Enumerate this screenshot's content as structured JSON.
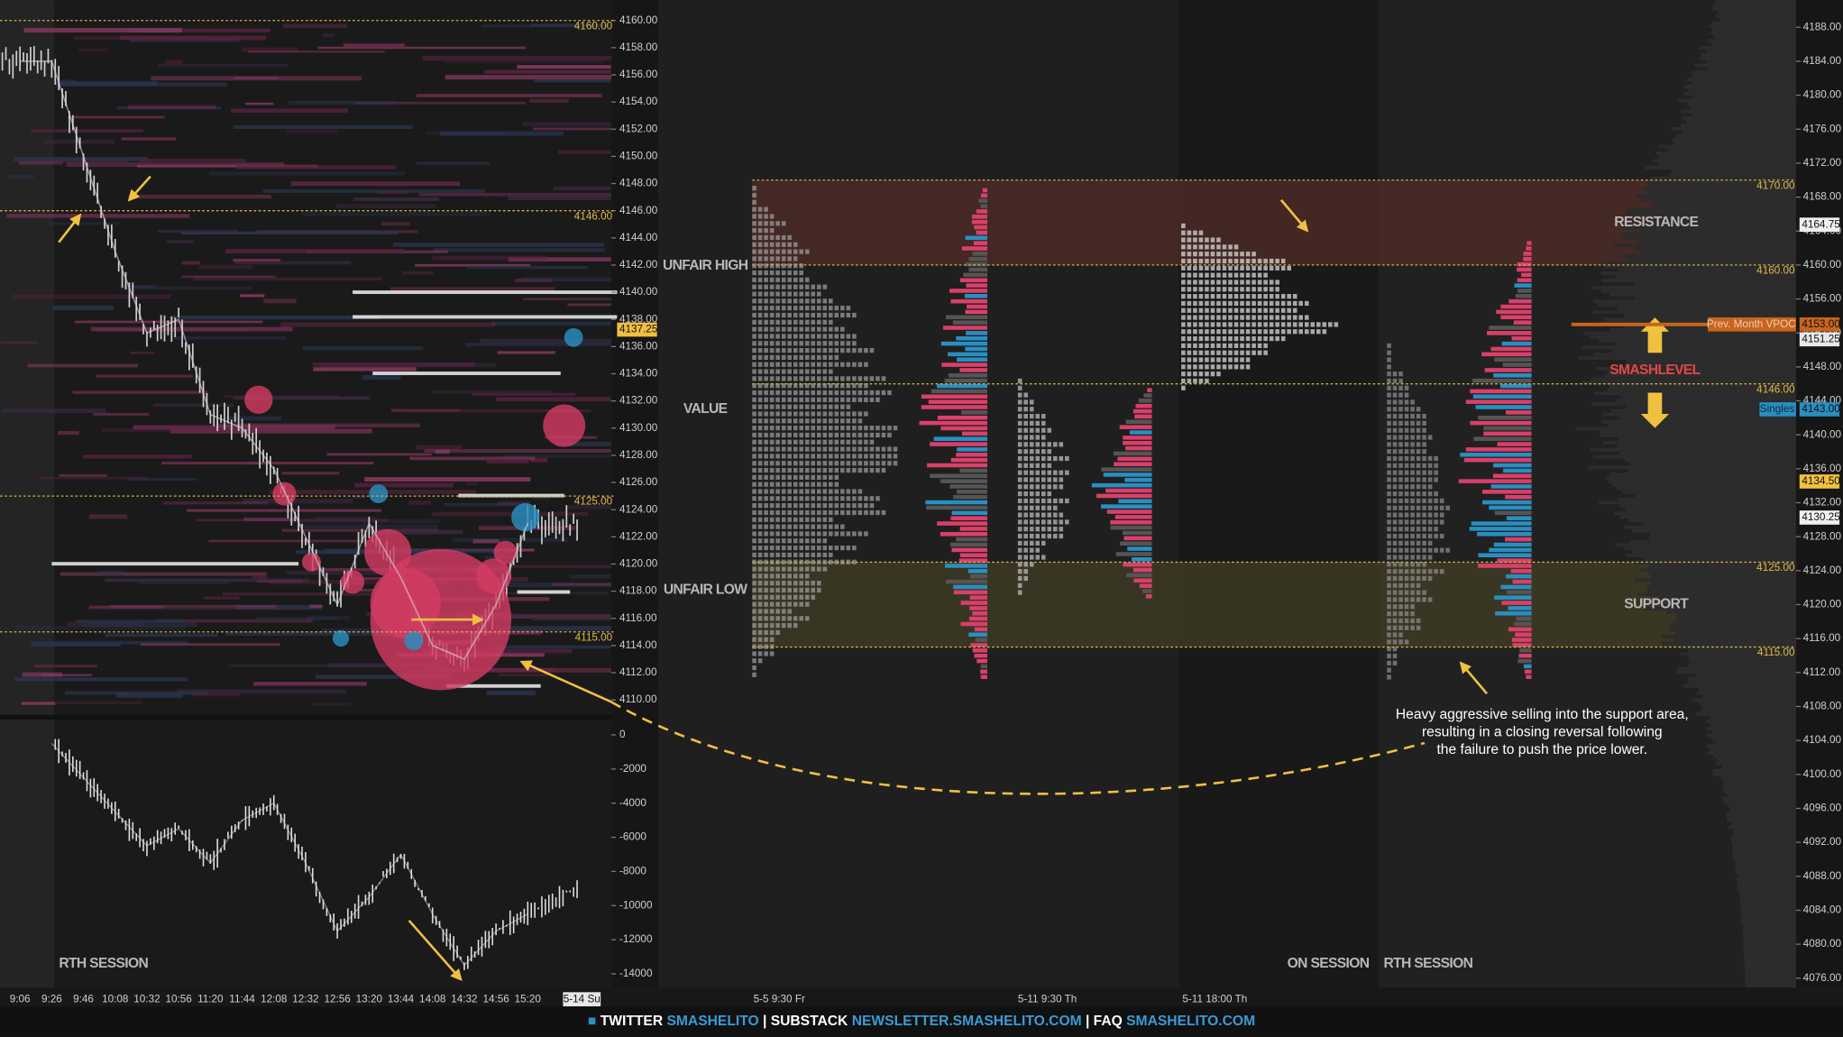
{
  "chart_data": [
    {
      "type": "line",
      "session_label": "RTH SESSION",
      "categories": [
        "9:06",
        "9:26",
        "9:46",
        "10:08",
        "10:32",
        "10:56",
        "11:20",
        "11:44",
        "12:08",
        "12:32",
        "12:56",
        "13:20",
        "13:44",
        "14:08",
        "14:32",
        "14:56",
        "15:20"
      ],
      "values": [
        4157,
        4157,
        4150,
        4143,
        4137,
        4138,
        4131,
        4130,
        4127,
        4122,
        4117,
        4123,
        4119,
        4114,
        4113,
        4117,
        4123
      ],
      "date_label": "5-14 Su",
      "color": "#d8d8d8",
      "ylim": [
        4108.9,
        4161.5
      ],
      "yticks": [
        {
          "value": 4160,
          "label": "4160.00"
        },
        {
          "value": 4158,
          "label": "4158.00"
        },
        {
          "value": 4156,
          "label": "4156.00"
        },
        {
          "value": 4154,
          "label": "4154.00"
        },
        {
          "value": 4152,
          "label": "4152.00"
        },
        {
          "value": 4150,
          "label": "4150.00"
        },
        {
          "value": 4148,
          "label": "4148.00"
        },
        {
          "value": 4146,
          "label": "4146.00"
        },
        {
          "value": 4144,
          "label": "4144.00"
        },
        {
          "value": 4142,
          "label": "4142.00"
        },
        {
          "value": 4140,
          "label": "4140.00"
        },
        {
          "value": 4138,
          "label": "4138.00"
        },
        {
          "value": 4136,
          "label": "4136.00"
        },
        {
          "value": 4134,
          "label": "4134.00"
        },
        {
          "value": 4132,
          "label": "4132.00"
        },
        {
          "value": 4130,
          "label": "4130.00"
        },
        {
          "value": 4128,
          "label": "4128.00"
        },
        {
          "value": 4126,
          "label": "4126.00"
        },
        {
          "value": 4124,
          "label": "4124.00"
        },
        {
          "value": 4122,
          "label": "4122.00"
        },
        {
          "value": 4120,
          "label": "4120.00"
        },
        {
          "value": 4118,
          "label": "4118.00"
        },
        {
          "value": 4116,
          "label": "4116.00"
        },
        {
          "value": 4114,
          "label": "4114.00"
        },
        {
          "value": 4112,
          "label": "4112.00"
        },
        {
          "value": 4110,
          "label": "4110.00"
        }
      ],
      "levels": [
        {
          "value": 4160,
          "label": "4160.00"
        },
        {
          "value": 4146,
          "label": "4146.00"
        },
        {
          "value": 4125,
          "label": "4125.00"
        },
        {
          "value": 4115,
          "label": "4115.00"
        }
      ],
      "last_price": {
        "value": 4137.25,
        "label": "4137.25"
      }
    },
    {
      "type": "line",
      "color": "#e0e0e0",
      "values": [
        null,
        -500,
        -2500,
        -4500,
        -6500,
        -5500,
        -7500,
        -5000,
        -4000,
        -7500,
        -11500,
        -9500,
        -7000,
        -10500,
        -13500,
        -11500,
        -10500
      ],
      "ylim": [
        -14800,
        900
      ],
      "yticks": [
        0,
        -2000,
        -4000,
        -6000,
        -8000,
        -10000,
        -12000,
        -14000
      ]
    },
    {
      "type": "profile",
      "ylim": [
        4074.9,
        4191.2
      ],
      "yticks": [
        {
          "value": 4188,
          "label": "4188.00"
        },
        {
          "value": 4184,
          "label": "4184.00"
        },
        {
          "value": 4180,
          "label": "4180.00"
        },
        {
          "value": 4176,
          "label": "4176.00"
        },
        {
          "value": 4172,
          "label": "4172.00"
        },
        {
          "value": 4168,
          "label": "4168.00"
        },
        {
          "value": 4164,
          "label": "4164.00"
        },
        {
          "value": 4160,
          "label": "4160.00"
        },
        {
          "value": 4156,
          "label": "4156.00"
        },
        {
          "value": 4152,
          "label": "4152.00"
        },
        {
          "value": 4148,
          "label": "4148.00"
        },
        {
          "value": 4144,
          "label": "4144.00"
        },
        {
          "value": 4140,
          "label": "4140.00"
        },
        {
          "value": 4136,
          "label": "4136.00"
        },
        {
          "value": 4132,
          "label": "4132.00"
        },
        {
          "value": 4128,
          "label": "4128.00"
        },
        {
          "value": 4124,
          "label": "4124.00"
        },
        {
          "value": 4120,
          "label": "4120.00"
        },
        {
          "value": 4116,
          "label": "4116.00"
        },
        {
          "value": 4112,
          "label": "4112.00"
        },
        {
          "value": 4108,
          "label": "4108.00"
        },
        {
          "value": 4104,
          "label": "4104.00"
        },
        {
          "value": 4100,
          "label": "4100.00"
        },
        {
          "value": 4096,
          "label": "4096.00"
        },
        {
          "value": 4092,
          "label": "4092.00"
        },
        {
          "value": 4088,
          "label": "4088.00"
        },
        {
          "value": 4084,
          "label": "4084.00"
        },
        {
          "value": 4080,
          "label": "4080.00"
        },
        {
          "value": 4076,
          "label": "4076.00"
        }
      ],
      "levels": [
        {
          "value": 4170,
          "label": "4170.00"
        },
        {
          "value": 4160,
          "label": "4160.00"
        },
        {
          "value": 4146,
          "label": "4146.00"
        },
        {
          "value": 4125,
          "label": "4125.00"
        },
        {
          "value": 4115,
          "label": "4115.00"
        }
      ],
      "zones": [
        {
          "label": "RESISTANCE",
          "from": 4160,
          "to": 4170,
          "color": "#4a2a26"
        },
        {
          "label": "SUPPORT",
          "from": 4115,
          "to": 4125,
          "color": "#3e3a24"
        }
      ],
      "price_boxes": [
        {
          "value": 4164.75,
          "label": "4164.75",
          "color": "#f0f0f0"
        },
        {
          "value": 4153,
          "label": "4153.00",
          "color": "#c8641e"
        },
        {
          "value": 4151.25,
          "label": "4151.25",
          "color": "#e8e8e8"
        },
        {
          "value": 4143,
          "label": "4143.00",
          "color": "#2a8fc0"
        },
        {
          "value": 4134.5,
          "label": "4134.50",
          "color": "#f0c040"
        },
        {
          "value": 4130.25,
          "label": "4130.25",
          "color": "#f0f0f0"
        }
      ],
      "smashlevel": {
        "label": "SMASHLEVEL",
        "value": 4153,
        "name": "Prev. Month VPOC",
        "color": "#c8641e"
      },
      "singles": {
        "label": "Singles",
        "value": 4143
      },
      "region_labels": [
        "UNFAIR HIGH",
        "VALUE",
        "UNFAIR LOW"
      ],
      "session_labels": [
        "ON SESSION",
        "RTH SESSION"
      ],
      "time_labels": [
        "5-5  9:30 Fr",
        "5-11  9:30 Th",
        "5-11  18:00 Th"
      ],
      "annotation": [
        "Heavy aggressive selling into the support area,",
        "resulting in a closing reversal following",
        "the failure to push the price lower."
      ]
    }
  ],
  "footer": {
    "items": [
      "TWITTER",
      "SMASHELITO",
      "|",
      "SUBSTACK",
      "NEWSLETTER.SMASHELITO.COM",
      "|",
      "FAQ",
      "SMASHELITO.COM"
    ]
  }
}
